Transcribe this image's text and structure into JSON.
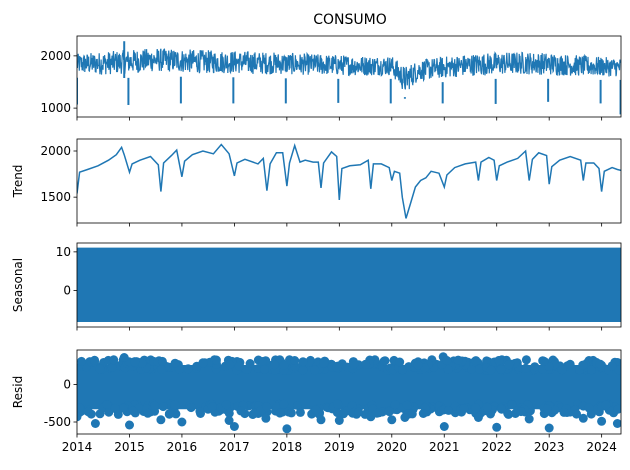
{
  "chart_data": {
    "type": "line",
    "title": "CONSUMO",
    "color": "#1f77b4",
    "xlim": [
      "2014-01-01",
      "2024-05-15"
    ],
    "x_ticks": [
      "2014",
      "2015",
      "2016",
      "2017",
      "2018",
      "2019",
      "2020",
      "2021",
      "2022",
      "2023",
      "2024"
    ],
    "panels": [
      {
        "name": "observed",
        "ylabel": "",
        "kind": "line",
        "ylim": [
          830,
          2380
        ],
        "y_ticks": [
          1000,
          2000
        ],
        "data": {
          "band_low": [
            [
              2014.0,
              1580
            ],
            [
              2014.5,
              1560
            ],
            [
              2015.0,
              1580
            ],
            [
              2015.5,
              1620
            ],
            [
              2016.0,
              1600
            ],
            [
              2016.5,
              1580
            ],
            [
              2017.0,
              1590
            ],
            [
              2017.5,
              1570
            ],
            [
              2018.0,
              1570
            ],
            [
              2018.5,
              1560
            ],
            [
              2019.0,
              1560
            ],
            [
              2019.5,
              1550
            ],
            [
              2020.0,
              1560
            ],
            [
              2020.25,
              1180
            ],
            [
              2020.5,
              1450
            ],
            [
              2021.0,
              1500
            ],
            [
              2021.5,
              1540
            ],
            [
              2022.0,
              1560
            ],
            [
              2022.5,
              1570
            ],
            [
              2023.0,
              1560
            ],
            [
              2023.5,
              1540
            ],
            [
              2024.0,
              1540
            ],
            [
              2024.37,
              1540
            ]
          ],
          "band_high": [
            [
              2014.0,
              2040
            ],
            [
              2014.5,
              2080
            ],
            [
              2015.0,
              2120
            ],
            [
              2015.5,
              2150
            ],
            [
              2016.0,
              2130
            ],
            [
              2016.5,
              2110
            ],
            [
              2017.0,
              2100
            ],
            [
              2017.5,
              2080
            ],
            [
              2018.0,
              2060
            ],
            [
              2018.5,
              2040
            ],
            [
              2019.0,
              2020
            ],
            [
              2019.5,
              2000
            ],
            [
              2020.0,
              2000
            ],
            [
              2020.25,
              1800
            ],
            [
              2020.5,
              1920
            ],
            [
              2021.0,
              1990
            ],
            [
              2021.5,
              2040
            ],
            [
              2022.0,
              2070
            ],
            [
              2022.5,
              2080
            ],
            [
              2023.0,
              2060
            ],
            [
              2023.5,
              2020
            ],
            [
              2024.0,
              1980
            ],
            [
              2024.37,
              1960
            ]
          ],
          "spikes": [
            [
              2014.0,
              1070
            ],
            [
              2014.9,
              2280
            ],
            [
              2014.98,
              1060
            ],
            [
              2015.98,
              1090
            ],
            [
              2016.98,
              1090
            ],
            [
              2017.98,
              1090
            ],
            [
              2018.98,
              1100
            ],
            [
              2019.98,
              1090
            ],
            [
              2020.25,
              1210
            ],
            [
              2020.97,
              1090
            ],
            [
              2021.98,
              1080
            ],
            [
              2022.98,
              1120
            ],
            [
              2023.98,
              1090
            ],
            [
              2024.36,
              880
            ]
          ]
        }
      },
      {
        "name": "trend",
        "ylabel": "Trend",
        "kind": "line",
        "ylim": [
          1220,
          2130
        ],
        "y_ticks": [
          1500,
          2000
        ],
        "data": {
          "points": [
            [
              2014.0,
              1540
            ],
            [
              2014.05,
              1770
            ],
            [
              2014.2,
              1800
            ],
            [
              2014.4,
              1840
            ],
            [
              2014.6,
              1900
            ],
            [
              2014.75,
              1960
            ],
            [
              2014.85,
              2040
            ],
            [
              2014.9,
              1960
            ],
            [
              2015.0,
              1770
            ],
            [
              2015.05,
              1860
            ],
            [
              2015.2,
              1900
            ],
            [
              2015.4,
              1940
            ],
            [
              2015.55,
              1850
            ],
            [
              2015.6,
              1560
            ],
            [
              2015.65,
              1870
            ],
            [
              2015.8,
              1950
            ],
            [
              2015.9,
              2010
            ],
            [
              2016.0,
              1720
            ],
            [
              2016.05,
              1890
            ],
            [
              2016.2,
              1960
            ],
            [
              2016.4,
              2000
            ],
            [
              2016.6,
              1970
            ],
            [
              2016.75,
              2070
            ],
            [
              2016.9,
              1970
            ],
            [
              2017.0,
              1730
            ],
            [
              2017.05,
              1870
            ],
            [
              2017.2,
              1910
            ],
            [
              2017.45,
              1860
            ],
            [
              2017.55,
              1920
            ],
            [
              2017.62,
              1570
            ],
            [
              2017.68,
              1860
            ],
            [
              2017.8,
              1980
            ],
            [
              2017.92,
              1980
            ],
            [
              2018.0,
              1620
            ],
            [
              2018.05,
              1870
            ],
            [
              2018.15,
              2060
            ],
            [
              2018.25,
              1880
            ],
            [
              2018.35,
              1900
            ],
            [
              2018.5,
              1880
            ],
            [
              2018.6,
              1880
            ],
            [
              2018.65,
              1600
            ],
            [
              2018.7,
              1870
            ],
            [
              2018.85,
              1990
            ],
            [
              2018.95,
              1940
            ],
            [
              2019.0,
              1470
            ],
            [
              2019.05,
              1810
            ],
            [
              2019.2,
              1840
            ],
            [
              2019.4,
              1850
            ],
            [
              2019.55,
              1900
            ],
            [
              2019.6,
              1590
            ],
            [
              2019.65,
              1860
            ],
            [
              2019.8,
              1860
            ],
            [
              2019.95,
              1820
            ],
            [
              2020.0,
              1680
            ],
            [
              2020.05,
              1780
            ],
            [
              2020.15,
              1760
            ],
            [
              2020.2,
              1500
            ],
            [
              2020.27,
              1270
            ],
            [
              2020.35,
              1420
            ],
            [
              2020.45,
              1610
            ],
            [
              2020.55,
              1680
            ],
            [
              2020.65,
              1710
            ],
            [
              2020.75,
              1780
            ],
            [
              2020.9,
              1760
            ],
            [
              2021.0,
              1610
            ],
            [
              2021.05,
              1740
            ],
            [
              2021.2,
              1820
            ],
            [
              2021.4,
              1860
            ],
            [
              2021.6,
              1880
            ],
            [
              2021.65,
              1680
            ],
            [
              2021.7,
              1880
            ],
            [
              2021.85,
              1930
            ],
            [
              2021.95,
              1900
            ],
            [
              2022.0,
              1680
            ],
            [
              2022.05,
              1840
            ],
            [
              2022.2,
              1880
            ],
            [
              2022.4,
              1920
            ],
            [
              2022.55,
              2000
            ],
            [
              2022.62,
              1680
            ],
            [
              2022.68,
              1910
            ],
            [
              2022.8,
              1980
            ],
            [
              2022.95,
              1950
            ],
            [
              2023.0,
              1640
            ],
            [
              2023.05,
              1830
            ],
            [
              2023.2,
              1900
            ],
            [
              2023.4,
              1940
            ],
            [
              2023.6,
              1900
            ],
            [
              2023.65,
              1680
            ],
            [
              2023.7,
              1870
            ],
            [
              2023.85,
              1870
            ],
            [
              2023.95,
              1810
            ],
            [
              2024.0,
              1560
            ],
            [
              2024.05,
              1780
            ],
            [
              2024.2,
              1820
            ],
            [
              2024.3,
              1800
            ],
            [
              2024.37,
              1790
            ]
          ]
        }
      },
      {
        "name": "seasonal",
        "ylabel": "Seasonal",
        "kind": "band",
        "ylim": [
          -9.5,
          12.3
        ],
        "y_ticks": [
          0,
          10
        ],
        "data": {
          "low": -8.2,
          "high": 11.1
        }
      },
      {
        "name": "resid",
        "ylabel": "Resid",
        "kind": "scatter",
        "ylim": [
          -660,
          460
        ],
        "y_ticks": [
          -500,
          0
        ],
        "data": {
          "band_low": -330,
          "band_high": 260,
          "outliers_low": [
            [
              2014.0,
              -430
            ],
            [
              2014.35,
              -520
            ],
            [
              2015.0,
              -540
            ],
            [
              2015.6,
              -470
            ],
            [
              2016.0,
              -500
            ],
            [
              2016.9,
              -480
            ],
            [
              2017.0,
              -560
            ],
            [
              2017.6,
              -450
            ],
            [
              2018.0,
              -590
            ],
            [
              2018.65,
              -470
            ],
            [
              2019.0,
              -480
            ],
            [
              2019.6,
              -430
            ],
            [
              2020.0,
              -470
            ],
            [
              2020.25,
              -440
            ],
            [
              2021.0,
              -560
            ],
            [
              2021.65,
              -440
            ],
            [
              2022.0,
              -570
            ],
            [
              2022.62,
              -460
            ],
            [
              2023.0,
              -580
            ],
            [
              2023.65,
              -450
            ],
            [
              2024.0,
              -490
            ],
            [
              2024.3,
              -520
            ]
          ],
          "outliers_high": [
            [
              2014.7,
              330
            ],
            [
              2014.9,
              360
            ],
            [
              2015.1,
              300
            ],
            [
              2016.4,
              290
            ],
            [
              2017.3,
              280
            ],
            [
              2018.05,
              330
            ],
            [
              2018.15,
              320
            ],
            [
              2019.5,
              270
            ],
            [
              2020.15,
              300
            ],
            [
              2020.5,
              260
            ],
            [
              2020.98,
              370
            ],
            [
              2021.05,
              320
            ],
            [
              2022.05,
              320
            ],
            [
              2022.9,
              310
            ],
            [
              2023.4,
              270
            ],
            [
              2024.2,
              250
            ]
          ]
        }
      }
    ]
  }
}
